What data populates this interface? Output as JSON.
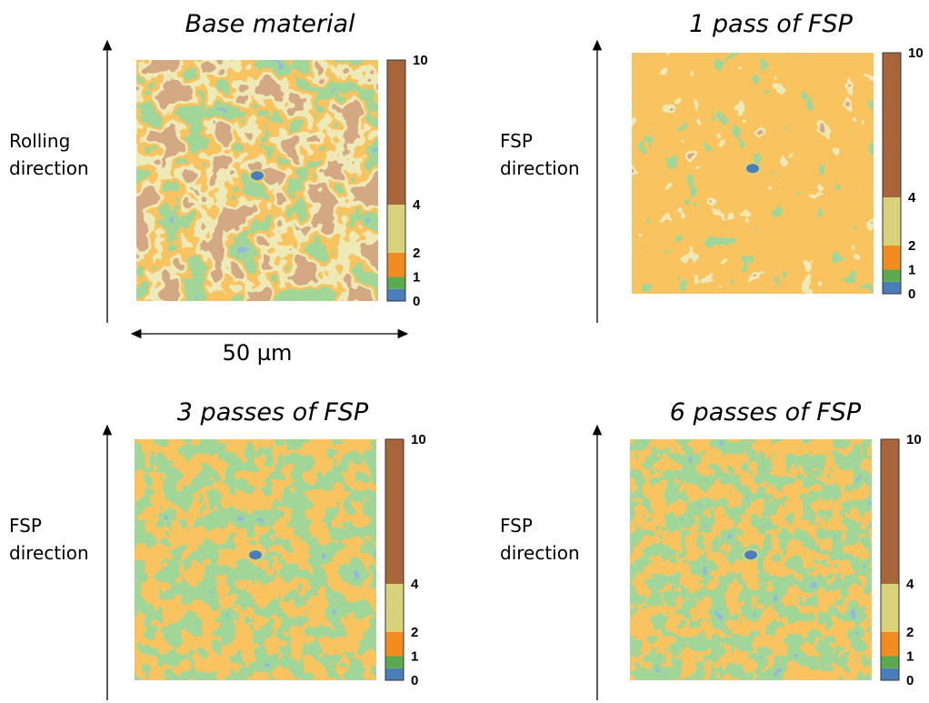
{
  "panels": [
    {
      "title": "Base material",
      "direction_label": [
        "Rolling",
        "direction"
      ],
      "scale_bar": "50 µm"
    },
    {
      "title": "1 pass of FSP",
      "direction_label": [
        "FSP",
        "direction"
      ]
    },
    {
      "title": "3 passes of FSP",
      "direction_label": [
        "FSP",
        "direction"
      ]
    },
    {
      "title": "6 passes of FSP",
      "direction_label": [
        "FSP",
        "direction"
      ]
    }
  ],
  "colorbar": {
    "ticks": [
      0,
      1,
      2,
      4,
      10
    ],
    "colors": [
      "#4a7ebb",
      "#5aab4f",
      "#f28c1e",
      "#d8d27a",
      "#a8653a"
    ]
  }
}
